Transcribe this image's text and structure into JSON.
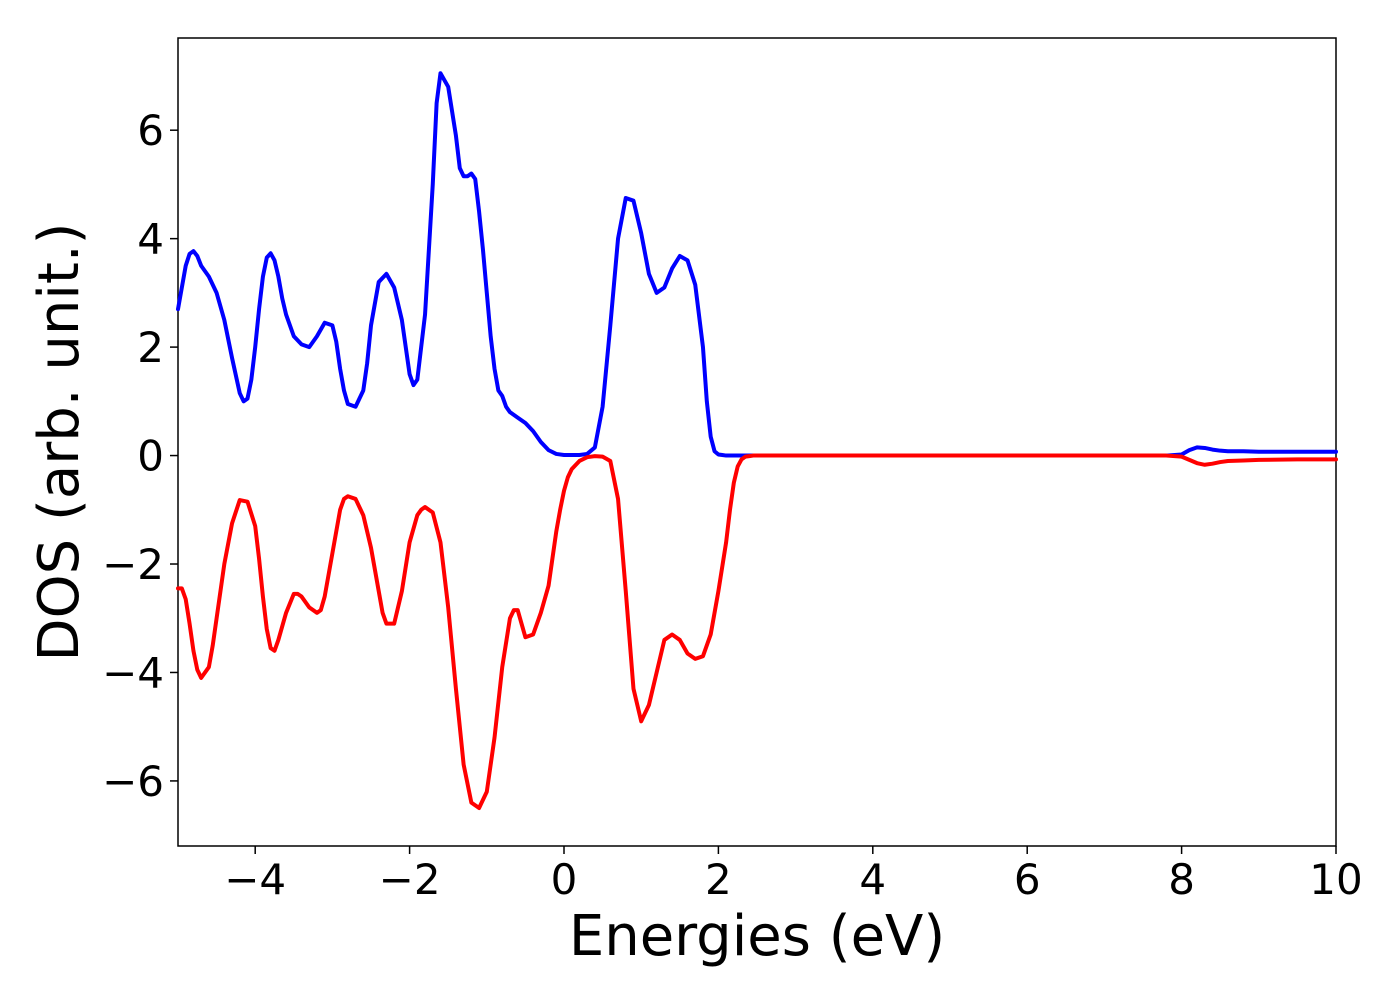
{
  "chart_data": {
    "type": "line",
    "title": "",
    "xlabel": "Energies (eV)",
    "ylabel": "DOS (arb. unit.)",
    "xlim": [
      -5,
      10
    ],
    "ylim": [
      -7.2,
      7.7
    ],
    "grid": false,
    "legend": "none",
    "x_ticks": [
      {
        "value": -4,
        "label": "−4"
      },
      {
        "value": -2,
        "label": "−2"
      },
      {
        "value": 0,
        "label": "0"
      },
      {
        "value": 2,
        "label": "2"
      },
      {
        "value": 4,
        "label": "4"
      },
      {
        "value": 6,
        "label": "6"
      },
      {
        "value": 8,
        "label": "8"
      },
      {
        "value": 10,
        "label": "10"
      }
    ],
    "y_ticks": [
      {
        "value": -6,
        "label": "−6"
      },
      {
        "value": -4,
        "label": "−4"
      },
      {
        "value": -2,
        "label": "−2"
      },
      {
        "value": 0,
        "label": "0"
      },
      {
        "value": 2,
        "label": "2"
      },
      {
        "value": 4,
        "label": "4"
      },
      {
        "value": 6,
        "label": "6"
      }
    ],
    "series": [
      {
        "color": "#0000ff",
        "x": [
          -5.0,
          -4.95,
          -4.9,
          -4.85,
          -4.8,
          -4.75,
          -4.7,
          -4.6,
          -4.5,
          -4.4,
          -4.3,
          -4.2,
          -4.15,
          -4.1,
          -4.05,
          -4.0,
          -3.95,
          -3.9,
          -3.85,
          -3.8,
          -3.75,
          -3.7,
          -3.65,
          -3.6,
          -3.5,
          -3.4,
          -3.3,
          -3.2,
          -3.1,
          -3.0,
          -2.95,
          -2.9,
          -2.85,
          -2.8,
          -2.7,
          -2.6,
          -2.55,
          -2.5,
          -2.4,
          -2.3,
          -2.2,
          -2.1,
          -2.05,
          -2.0,
          -1.95,
          -1.9,
          -1.8,
          -1.7,
          -1.65,
          -1.6,
          -1.5,
          -1.4,
          -1.35,
          -1.3,
          -1.25,
          -1.2,
          -1.15,
          -1.1,
          -1.05,
          -1.0,
          -0.95,
          -0.9,
          -0.85,
          -0.8,
          -0.75,
          -0.7,
          -0.6,
          -0.5,
          -0.4,
          -0.3,
          -0.2,
          -0.1,
          0.0,
          0.1,
          0.2,
          0.3,
          0.4,
          0.5,
          0.6,
          0.7,
          0.8,
          0.9,
          1.0,
          1.1,
          1.2,
          1.3,
          1.4,
          1.5,
          1.6,
          1.7,
          1.8,
          1.85,
          1.9,
          1.95,
          2.0,
          2.05,
          2.1,
          2.15,
          2.2,
          2.25,
          2.3,
          2.35,
          2.4,
          2.45,
          2.5,
          2.6,
          2.7,
          2.8,
          2.9,
          3.0,
          3.2,
          3.5,
          4.0,
          5.0,
          6.0,
          7.0,
          7.8,
          8.0,
          8.1,
          8.2,
          8.3,
          8.4,
          8.5,
          8.6,
          8.8,
          9.0,
          9.5,
          10.0
        ],
        "y": [
          2.7,
          3.1,
          3.5,
          3.72,
          3.77,
          3.68,
          3.5,
          3.3,
          3.0,
          2.5,
          1.8,
          1.15,
          1.0,
          1.05,
          1.4,
          2.0,
          2.7,
          3.3,
          3.65,
          3.73,
          3.6,
          3.3,
          2.9,
          2.6,
          2.2,
          2.05,
          2.0,
          2.2,
          2.45,
          2.4,
          2.1,
          1.6,
          1.2,
          0.95,
          0.9,
          1.2,
          1.7,
          2.4,
          3.2,
          3.35,
          3.1,
          2.5,
          2.0,
          1.5,
          1.3,
          1.4,
          2.6,
          5.0,
          6.5,
          7.05,
          6.8,
          5.9,
          5.3,
          5.15,
          5.15,
          5.2,
          5.1,
          4.5,
          3.8,
          3.0,
          2.2,
          1.6,
          1.2,
          1.1,
          0.9,
          0.8,
          0.7,
          0.6,
          0.45,
          0.25,
          0.1,
          0.03,
          0.01,
          0.01,
          0.01,
          0.03,
          0.15,
          0.9,
          2.4,
          4.0,
          4.75,
          4.7,
          4.1,
          3.35,
          3.0,
          3.1,
          3.45,
          3.68,
          3.6,
          3.15,
          2.0,
          1.0,
          0.35,
          0.08,
          0.02,
          0.01,
          0.0,
          0.0,
          0.0,
          0.0,
          0.0,
          0.0,
          0.0,
          0.0,
          0.0,
          0.0,
          0.0,
          0.0,
          0.0,
          0.0,
          0.0,
          0.0,
          0.0,
          0.0,
          0.0,
          0.0,
          0.0,
          0.02,
          0.1,
          0.15,
          0.14,
          0.11,
          0.09,
          0.08,
          0.08,
          0.07,
          0.07,
          0.07
        ]
      },
      {
        "color": "#ff0000",
        "x": [
          -5.0,
          -4.95,
          -4.9,
          -4.85,
          -4.8,
          -4.75,
          -4.7,
          -4.6,
          -4.55,
          -4.5,
          -4.45,
          -4.4,
          -4.3,
          -4.2,
          -4.1,
          -4.0,
          -3.95,
          -3.9,
          -3.85,
          -3.8,
          -3.75,
          -3.7,
          -3.6,
          -3.5,
          -3.45,
          -3.4,
          -3.3,
          -3.2,
          -3.15,
          -3.1,
          -3.0,
          -2.9,
          -2.85,
          -2.8,
          -2.7,
          -2.6,
          -2.5,
          -2.4,
          -2.35,
          -2.3,
          -2.2,
          -2.1,
          -2.0,
          -1.9,
          -1.85,
          -1.8,
          -1.7,
          -1.6,
          -1.5,
          -1.4,
          -1.3,
          -1.2,
          -1.1,
          -1.0,
          -0.9,
          -0.8,
          -0.7,
          -0.65,
          -0.6,
          -0.55,
          -0.5,
          -0.4,
          -0.3,
          -0.2,
          -0.15,
          -0.1,
          -0.05,
          0.0,
          0.05,
          0.1,
          0.2,
          0.3,
          0.4,
          0.5,
          0.6,
          0.7,
          0.8,
          0.9,
          1.0,
          1.1,
          1.2,
          1.3,
          1.4,
          1.5,
          1.6,
          1.7,
          1.8,
          1.9,
          2.0,
          2.1,
          2.15,
          2.2,
          2.25,
          2.3,
          2.35,
          2.4,
          2.45,
          2.5,
          2.55,
          2.6,
          2.65,
          2.7,
          2.75,
          2.8,
          2.85,
          2.9,
          3.0,
          3.1,
          3.2,
          3.3,
          3.4,
          3.5,
          4.0,
          5.0,
          6.0,
          7.0,
          7.8,
          8.0,
          8.1,
          8.2,
          8.3,
          8.4,
          8.5,
          8.6,
          8.8,
          9.0,
          9.5,
          10.0
        ],
        "y": [
          -2.45,
          -2.45,
          -2.65,
          -3.1,
          -3.6,
          -3.95,
          -4.1,
          -3.9,
          -3.5,
          -3.0,
          -2.5,
          -2.0,
          -1.25,
          -0.82,
          -0.85,
          -1.3,
          -1.9,
          -2.6,
          -3.2,
          -3.55,
          -3.6,
          -3.4,
          -2.9,
          -2.55,
          -2.55,
          -2.6,
          -2.8,
          -2.9,
          -2.85,
          -2.6,
          -1.8,
          -1.0,
          -0.8,
          -0.75,
          -0.8,
          -1.1,
          -1.7,
          -2.5,
          -2.9,
          -3.1,
          -3.1,
          -2.5,
          -1.6,
          -1.1,
          -1.0,
          -0.95,
          -1.05,
          -1.6,
          -2.8,
          -4.3,
          -5.7,
          -6.4,
          -6.5,
          -6.2,
          -5.2,
          -3.9,
          -3.0,
          -2.85,
          -2.85,
          -3.1,
          -3.35,
          -3.3,
          -2.9,
          -2.4,
          -1.9,
          -1.4,
          -1.0,
          -0.65,
          -0.4,
          -0.25,
          -0.1,
          -0.03,
          -0.01,
          -0.02,
          -0.1,
          -0.8,
          -2.5,
          -4.3,
          -4.9,
          -4.6,
          -4.0,
          -3.4,
          -3.3,
          -3.4,
          -3.65,
          -3.75,
          -3.7,
          -3.3,
          -2.5,
          -1.6,
          -1.0,
          -0.5,
          -0.2,
          -0.07,
          -0.02,
          -0.01,
          -0.0,
          -0.0,
          -0.0,
          -0.0,
          -0.0,
          -0.0,
          -0.0,
          -0.0,
          -0.0,
          -0.0,
          -0.0,
          -0.0,
          -0.0,
          -0.0,
          -0.0,
          -0.0,
          -0.0,
          -0.0,
          -0.0,
          -0.0,
          -0.0,
          -0.02,
          -0.08,
          -0.14,
          -0.17,
          -0.15,
          -0.12,
          -0.1,
          -0.09,
          -0.08,
          -0.07,
          -0.07
        ]
      }
    ]
  }
}
